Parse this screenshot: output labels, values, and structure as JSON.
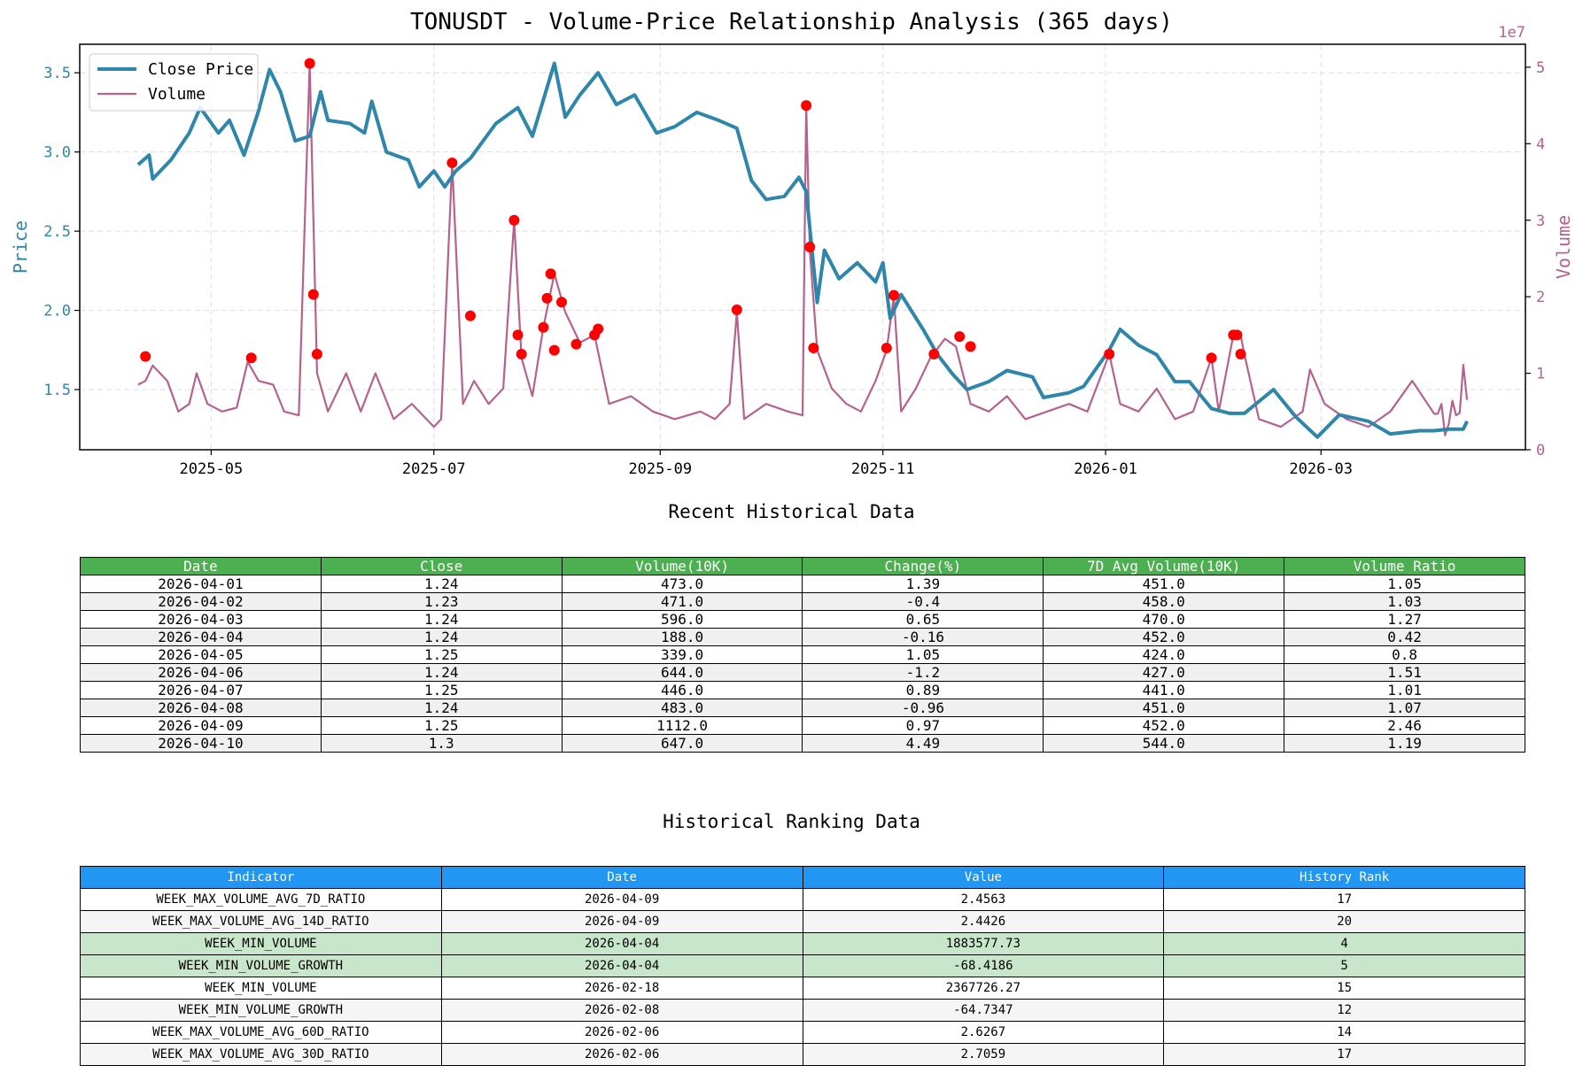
{
  "chart_data": {
    "type": "line",
    "title": "TONUSDT - Volume-Price Relationship Analysis (365 days)",
    "y_left_label": "Price",
    "y_right_label": "Volume",
    "y_right_multiplier": "1e7",
    "y_left_range": [
      1.12,
      3.68
    ],
    "y_right_range": [
      0,
      5.3
    ],
    "y_left_ticks": [
      "1.5",
      "2.0",
      "2.5",
      "3.0",
      "3.5"
    ],
    "y_right_ticks": [
      "0",
      "1",
      "2",
      "3",
      "4",
      "5"
    ],
    "x_ticks": [
      "2025-05",
      "2025-07",
      "2025-09",
      "2025-11",
      "2026-01",
      "2026-03"
    ],
    "grid": true,
    "legend_position": "upper-left",
    "series": [
      {
        "name": "Close Price",
        "color": "#2e86ab",
        "axis": "left",
        "points": [
          [
            "2025-04-11",
            2.92
          ],
          [
            "2025-04-14",
            2.98
          ],
          [
            "2025-04-15",
            2.83
          ],
          [
            "2025-04-20",
            2.95
          ],
          [
            "2025-04-25",
            3.12
          ],
          [
            "2025-04-28",
            3.28
          ],
          [
            "2025-05-03",
            3.12
          ],
          [
            "2025-05-06",
            3.2
          ],
          [
            "2025-05-10",
            2.98
          ],
          [
            "2025-05-14",
            3.26
          ],
          [
            "2025-05-17",
            3.52
          ],
          [
            "2025-05-20",
            3.38
          ],
          [
            "2025-05-24",
            3.07
          ],
          [
            "2025-05-28",
            3.1
          ],
          [
            "2025-05-31",
            3.38
          ],
          [
            "2025-06-02",
            3.2
          ],
          [
            "2025-06-08",
            3.18
          ],
          [
            "2025-06-12",
            3.12
          ],
          [
            "2025-06-14",
            3.32
          ],
          [
            "2025-06-18",
            3.0
          ],
          [
            "2025-06-24",
            2.95
          ],
          [
            "2025-06-27",
            2.78
          ],
          [
            "2025-07-01",
            2.88
          ],
          [
            "2025-07-04",
            2.78
          ],
          [
            "2025-07-07",
            2.88
          ],
          [
            "2025-07-11",
            2.96
          ],
          [
            "2025-07-18",
            3.18
          ],
          [
            "2025-07-24",
            3.28
          ],
          [
            "2025-07-28",
            3.1
          ],
          [
            "2025-08-03",
            3.56
          ],
          [
            "2025-08-06",
            3.22
          ],
          [
            "2025-08-10",
            3.36
          ],
          [
            "2025-08-15",
            3.5
          ],
          [
            "2025-08-20",
            3.3
          ],
          [
            "2025-08-25",
            3.36
          ],
          [
            "2025-08-31",
            3.12
          ],
          [
            "2025-09-05",
            3.16
          ],
          [
            "2025-09-11",
            3.25
          ],
          [
            "2025-09-17",
            3.2
          ],
          [
            "2025-09-22",
            3.15
          ],
          [
            "2025-09-26",
            2.82
          ],
          [
            "2025-09-30",
            2.7
          ],
          [
            "2025-10-05",
            2.72
          ],
          [
            "2025-10-09",
            2.84
          ],
          [
            "2025-10-11",
            2.75
          ],
          [
            "2025-10-14",
            2.05
          ],
          [
            "2025-10-16",
            2.38
          ],
          [
            "2025-10-20",
            2.2
          ],
          [
            "2025-10-25",
            2.3
          ],
          [
            "2025-10-30",
            2.18
          ],
          [
            "2025-11-01",
            2.3
          ],
          [
            "2025-11-03",
            1.95
          ],
          [
            "2025-11-06",
            2.1
          ],
          [
            "2025-11-12",
            1.88
          ],
          [
            "2025-11-16",
            1.72
          ],
          [
            "2025-11-20",
            1.6
          ],
          [
            "2025-11-24",
            1.5
          ],
          [
            "2025-11-30",
            1.55
          ],
          [
            "2025-12-05",
            1.62
          ],
          [
            "2025-12-12",
            1.58
          ],
          [
            "2025-12-15",
            1.45
          ],
          [
            "2025-12-22",
            1.48
          ],
          [
            "2025-12-26",
            1.52
          ],
          [
            "2026-01-02",
            1.75
          ],
          [
            "2026-01-05",
            1.88
          ],
          [
            "2026-01-10",
            1.78
          ],
          [
            "2026-01-15",
            1.72
          ],
          [
            "2026-01-20",
            1.55
          ],
          [
            "2026-01-24",
            1.55
          ],
          [
            "2026-01-30",
            1.38
          ],
          [
            "2026-02-04",
            1.35
          ],
          [
            "2026-02-08",
            1.35
          ],
          [
            "2026-02-16",
            1.5
          ],
          [
            "2026-02-22",
            1.33
          ],
          [
            "2026-02-28",
            1.2
          ],
          [
            "2026-03-06",
            1.34
          ],
          [
            "2026-03-14",
            1.3
          ],
          [
            "2026-03-20",
            1.22
          ],
          [
            "2026-03-28",
            1.24
          ],
          [
            "2026-04-01",
            1.24
          ],
          [
            "2026-04-05",
            1.25
          ],
          [
            "2026-04-09",
            1.25
          ],
          [
            "2026-04-10",
            1.3
          ]
        ]
      },
      {
        "name": "Volume",
        "color": "#b5628f",
        "axis": "right",
        "points": [
          [
            "2025-04-11",
            0.85
          ],
          [
            "2025-04-13",
            0.9
          ],
          [
            "2025-04-15",
            1.1
          ],
          [
            "2025-04-19",
            0.9
          ],
          [
            "2025-04-22",
            0.5
          ],
          [
            "2025-04-25",
            0.6
          ],
          [
            "2025-04-27",
            1.0
          ],
          [
            "2025-04-30",
            0.6
          ],
          [
            "2025-05-04",
            0.5
          ],
          [
            "2025-05-08",
            0.55
          ],
          [
            "2025-05-11",
            1.15
          ],
          [
            "2025-05-14",
            0.9
          ],
          [
            "2025-05-18",
            0.85
          ],
          [
            "2025-05-21",
            0.5
          ],
          [
            "2025-05-25",
            0.45
          ],
          [
            "2025-05-28",
            5.05
          ],
          [
            "2025-05-30",
            1.0
          ],
          [
            "2025-06-02",
            0.5
          ],
          [
            "2025-06-07",
            1.0
          ],
          [
            "2025-06-11",
            0.5
          ],
          [
            "2025-06-15",
            1.0
          ],
          [
            "2025-06-20",
            0.4
          ],
          [
            "2025-06-25",
            0.6
          ],
          [
            "2025-07-01",
            0.3
          ],
          [
            "2025-07-03",
            0.4
          ],
          [
            "2025-07-06",
            3.75
          ],
          [
            "2025-07-09",
            0.6
          ],
          [
            "2025-07-12",
            0.9
          ],
          [
            "2025-07-16",
            0.6
          ],
          [
            "2025-07-20",
            0.8
          ],
          [
            "2025-07-23",
            3.0
          ],
          [
            "2025-07-25",
            1.2
          ],
          [
            "2025-07-28",
            0.7
          ],
          [
            "2025-07-31",
            1.6
          ],
          [
            "2025-08-03",
            2.3
          ],
          [
            "2025-08-06",
            1.8
          ],
          [
            "2025-08-10",
            1.4
          ],
          [
            "2025-08-14",
            1.5
          ],
          [
            "2025-08-18",
            0.6
          ],
          [
            "2025-08-24",
            0.7
          ],
          [
            "2025-08-30",
            0.5
          ],
          [
            "2025-09-05",
            0.4
          ],
          [
            "2025-09-12",
            0.5
          ],
          [
            "2025-09-16",
            0.4
          ],
          [
            "2025-09-20",
            0.6
          ],
          [
            "2025-09-22",
            1.8
          ],
          [
            "2025-09-24",
            0.4
          ],
          [
            "2025-09-30",
            0.6
          ],
          [
            "2025-10-06",
            0.5
          ],
          [
            "2025-10-10",
            0.45
          ],
          [
            "2025-10-11",
            4.5
          ],
          [
            "2025-10-12",
            2.6
          ],
          [
            "2025-10-14",
            1.3
          ],
          [
            "2025-10-18",
            0.8
          ],
          [
            "2025-10-22",
            0.6
          ],
          [
            "2025-10-26",
            0.5
          ],
          [
            "2025-10-30",
            0.9
          ],
          [
            "2025-11-02",
            1.3
          ],
          [
            "2025-11-04",
            2.0
          ],
          [
            "2025-11-06",
            0.5
          ],
          [
            "2025-11-10",
            0.8
          ],
          [
            "2025-11-14",
            1.2
          ],
          [
            "2025-11-18",
            1.45
          ],
          [
            "2025-11-21",
            1.35
          ],
          [
            "2025-11-25",
            0.6
          ],
          [
            "2025-11-30",
            0.5
          ],
          [
            "2025-12-05",
            0.7
          ],
          [
            "2025-12-10",
            0.4
          ],
          [
            "2025-12-16",
            0.5
          ],
          [
            "2025-12-22",
            0.6
          ],
          [
            "2025-12-27",
            0.5
          ],
          [
            "2026-01-02",
            1.25
          ],
          [
            "2026-01-05",
            0.6
          ],
          [
            "2026-01-10",
            0.5
          ],
          [
            "2026-01-15",
            0.8
          ],
          [
            "2026-01-20",
            0.4
          ],
          [
            "2026-01-25",
            0.5
          ],
          [
            "2026-01-30",
            1.2
          ],
          [
            "2026-02-01",
            0.5
          ],
          [
            "2026-02-05",
            1.5
          ],
          [
            "2026-02-07",
            1.5
          ],
          [
            "2026-02-08",
            1.25
          ],
          [
            "2026-02-12",
            0.4
          ],
          [
            "2026-02-18",
            0.3
          ],
          [
            "2026-02-24",
            0.5
          ],
          [
            "2026-02-26",
            1.05
          ],
          [
            "2026-03-02",
            0.6
          ],
          [
            "2026-03-08",
            0.4
          ],
          [
            "2026-03-14",
            0.3
          ],
          [
            "2026-03-20",
            0.5
          ],
          [
            "2026-03-26",
            0.9
          ],
          [
            "2026-04-01",
            0.47
          ],
          [
            "2026-04-02",
            0.47
          ],
          [
            "2026-04-03",
            0.6
          ],
          [
            "2026-04-04",
            0.19
          ],
          [
            "2026-04-05",
            0.34
          ],
          [
            "2026-04-06",
            0.64
          ],
          [
            "2026-04-07",
            0.45
          ],
          [
            "2026-04-08",
            0.48
          ],
          [
            "2026-04-09",
            1.11
          ],
          [
            "2026-04-10",
            0.65
          ]
        ]
      }
    ],
    "volume_spikes": {
      "color": "#ff0000",
      "points": [
        [
          "2025-04-13",
          1.22
        ],
        [
          "2025-05-12",
          1.2
        ],
        [
          "2025-05-28",
          5.05
        ],
        [
          "2025-05-29",
          2.03
        ],
        [
          "2025-05-30",
          1.25
        ],
        [
          "2025-07-06",
          3.75
        ],
        [
          "2025-07-11",
          1.75
        ],
        [
          "2025-07-23",
          3.0
        ],
        [
          "2025-07-24",
          1.5
        ],
        [
          "2025-07-25",
          1.25
        ],
        [
          "2025-07-31",
          1.6
        ],
        [
          "2025-08-01",
          1.98
        ],
        [
          "2025-08-02",
          2.3
        ],
        [
          "2025-08-03",
          1.3
        ],
        [
          "2025-08-05",
          1.93
        ],
        [
          "2025-08-09",
          1.38
        ],
        [
          "2025-08-14",
          1.5
        ],
        [
          "2025-08-15",
          1.58
        ],
        [
          "2025-09-22",
          1.83
        ],
        [
          "2025-10-11",
          4.5
        ],
        [
          "2025-10-12",
          2.65
        ],
        [
          "2025-10-13",
          1.33
        ],
        [
          "2025-11-02",
          1.33
        ],
        [
          "2025-11-04",
          2.02
        ],
        [
          "2025-11-15",
          1.25
        ],
        [
          "2025-11-22",
          1.48
        ],
        [
          "2025-11-25",
          1.35
        ],
        [
          "2026-01-02",
          1.25
        ],
        [
          "2026-01-30",
          1.2
        ],
        [
          "2026-02-05",
          1.5
        ],
        [
          "2026-02-06",
          1.5
        ],
        [
          "2026-02-07",
          1.25
        ]
      ]
    }
  },
  "recent": {
    "title": "Recent Historical Data",
    "headers": [
      "Date",
      "Close",
      "Volume(10K)",
      "Change(%)",
      "7D Avg Volume(10K)",
      "Volume Ratio"
    ],
    "rows": [
      [
        "2026-04-01",
        "1.24",
        "473.0",
        "1.39",
        "451.0",
        "1.05"
      ],
      [
        "2026-04-02",
        "1.23",
        "471.0",
        "-0.4",
        "458.0",
        "1.03"
      ],
      [
        "2026-04-03",
        "1.24",
        "596.0",
        "0.65",
        "470.0",
        "1.27"
      ],
      [
        "2026-04-04",
        "1.24",
        "188.0",
        "-0.16",
        "452.0",
        "0.42"
      ],
      [
        "2026-04-05",
        "1.25",
        "339.0",
        "1.05",
        "424.0",
        "0.8"
      ],
      [
        "2026-04-06",
        "1.24",
        "644.0",
        "-1.2",
        "427.0",
        "1.51"
      ],
      [
        "2026-04-07",
        "1.25",
        "446.0",
        "0.89",
        "441.0",
        "1.01"
      ],
      [
        "2026-04-08",
        "1.24",
        "483.0",
        "-0.96",
        "451.0",
        "1.07"
      ],
      [
        "2026-04-09",
        "1.25",
        "1112.0",
        "0.97",
        "452.0",
        "2.46"
      ],
      [
        "2026-04-10",
        "1.3",
        "647.0",
        "4.49",
        "544.0",
        "1.19"
      ]
    ],
    "row_colors": [
      "#ffffff",
      "#f0f0f0"
    ]
  },
  "ranking": {
    "title": "Historical Ranking Data",
    "headers": [
      "Indicator",
      "Date",
      "Value",
      "History Rank"
    ],
    "rows": [
      [
        "WEEK_MAX_VOLUME_AVG_7D_RATIO",
        "2026-04-09",
        "2.4563",
        "17"
      ],
      [
        "WEEK_MAX_VOLUME_AVG_14D_RATIO",
        "2026-04-09",
        "2.4426",
        "20"
      ],
      [
        "WEEK_MIN_VOLUME",
        "2026-04-04",
        "1883577.73",
        "4"
      ],
      [
        "WEEK_MIN_VOLUME_GROWTH",
        "2026-04-04",
        "-68.4186",
        "5"
      ],
      [
        "WEEK_MIN_VOLUME",
        "2026-02-18",
        "2367726.27",
        "15"
      ],
      [
        "WEEK_MIN_VOLUME_GROWTH",
        "2026-02-08",
        "-64.7347",
        "12"
      ],
      [
        "WEEK_MAX_VOLUME_AVG_60D_RATIO",
        "2026-02-06",
        "2.6267",
        "14"
      ],
      [
        "WEEK_MAX_VOLUME_AVG_30D_RATIO",
        "2026-02-06",
        "2.7059",
        "17"
      ]
    ],
    "row_colors": [
      "#ffffff",
      "#f5f5f5",
      "#c8e6c9",
      "#c8e6c9",
      "#ffffff",
      "#f5f5f5",
      "#ffffff",
      "#f5f5f5"
    ]
  }
}
